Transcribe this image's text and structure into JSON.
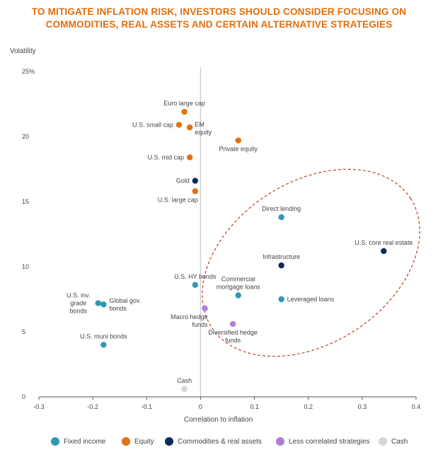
{
  "title_lines": [
    "TO MITIGATE INFLATION RISK, INVESTORS SHOULD CONSIDER FOCUSING ON",
    "COMMODITIES, REAL ASSETS AND CERTAIN ALTERNATIVE STRATEGIES"
  ],
  "colors": {
    "title": "#e46c0a",
    "fixed_income": "#2f9ab0",
    "equity": "#e2720f",
    "commodities": "#0d2b5a",
    "less_correlated": "#b07fd6",
    "cash": "#d6d6d6",
    "ellipse": "#b5452a",
    "axis": "#555555",
    "zero_line": "#cfcfcf"
  },
  "chart_data": {
    "type": "scatter",
    "title": "TO MITIGATE INFLATION RISK, INVESTORS SHOULD CONSIDER FOCUSING ON COMMODITIES, REAL ASSETS AND CERTAIN ALTERNATIVE STRATEGIES",
    "xlabel": "Correlation to inflation",
    "ylabel": "Volatility",
    "xlim": [
      -0.3,
      0.4
    ],
    "ylim": [
      0,
      25
    ],
    "x_ticks": [
      {
        "value": -0.3,
        "label": "-0.3"
      },
      {
        "value": -0.2,
        "label": "-0.2"
      },
      {
        "value": -0.1,
        "label": "-0.1"
      },
      {
        "value": 0,
        "label": "0"
      },
      {
        "value": 0.1,
        "label": "0.1"
      },
      {
        "value": 0.2,
        "label": "0.2"
      },
      {
        "value": 0.3,
        "label": "0.3"
      },
      {
        "value": 0.4,
        "label": "0.4"
      }
    ],
    "y_ticks": [
      {
        "value": 0,
        "label": "0"
      },
      {
        "value": 5,
        "label": "5"
      },
      {
        "value": 10,
        "label": "10"
      },
      {
        "value": 15,
        "label": "15"
      },
      {
        "value": 20,
        "label": "20"
      },
      {
        "value": 25,
        "label": "25%"
      }
    ],
    "legend": [
      {
        "key": "fixed_income",
        "label": "Fixed income"
      },
      {
        "key": "equity",
        "label": "Equity"
      },
      {
        "key": "commodities",
        "label": "Commodities & real assets"
      },
      {
        "key": "less_correlated",
        "label": "Less correlated strategies"
      },
      {
        "key": "cash",
        "label": "Cash"
      }
    ],
    "legend_position": "bottom",
    "highlight_ellipse": {
      "center": [
        0.205,
        10.3
      ],
      "semi_axes": [
        0.22,
        6.2
      ],
      "rotation_deg": -33,
      "style": "dashed"
    },
    "points": [
      {
        "label": [
          "Euro large cap"
        ],
        "x": -0.03,
        "y": 21.9,
        "category": "equity",
        "label_pos": "top"
      },
      {
        "label": [
          "U.S. small cap"
        ],
        "x": -0.04,
        "y": 20.9,
        "category": "equity",
        "label_pos": "left"
      },
      {
        "label": [
          "EM",
          "equity"
        ],
        "x": -0.02,
        "y": 20.7,
        "category": "equity",
        "label_pos": "right-below"
      },
      {
        "label": [
          "Private equity"
        ],
        "x": 0.07,
        "y": 19.7,
        "category": "equity",
        "label_pos": "bottom"
      },
      {
        "label": [
          "U.S. mid cap"
        ],
        "x": -0.02,
        "y": 18.4,
        "category": "equity",
        "label_pos": "left"
      },
      {
        "label": [
          "Gold"
        ],
        "x": -0.01,
        "y": 16.6,
        "category": "commodities",
        "label_pos": "left"
      },
      {
        "label": [
          "U.S. large cap"
        ],
        "x": -0.01,
        "y": 15.8,
        "category": "equity",
        "label_pos": "bottom-left"
      },
      {
        "label": [
          "Direct lending"
        ],
        "x": 0.15,
        "y": 13.8,
        "category": "fixed_income",
        "label_pos": "top"
      },
      {
        "label": [
          "U.S. core real estate"
        ],
        "x": 0.34,
        "y": 11.2,
        "category": "commodities",
        "label_pos": "top"
      },
      {
        "label": [
          "Infrastructure"
        ],
        "x": 0.15,
        "y": 10.1,
        "category": "commodities",
        "label_pos": "top"
      },
      {
        "label": [
          "U.S. HY bonds"
        ],
        "x": -0.01,
        "y": 8.6,
        "category": "fixed_income",
        "label_pos": "top"
      },
      {
        "label": [
          "Commercial",
          "mortgage loans"
        ],
        "x": 0.07,
        "y": 7.8,
        "category": "fixed_income",
        "label_pos": "top"
      },
      {
        "label": [
          "Leveraged loans"
        ],
        "x": 0.15,
        "y": 7.5,
        "category": "fixed_income",
        "label_pos": "right"
      },
      {
        "label": [
          "U.S. inv.",
          "grade",
          "bonds"
        ],
        "x": -0.19,
        "y": 7.2,
        "category": "fixed_income",
        "label_pos": "left"
      },
      {
        "label": [
          "Global gov.",
          "bonds"
        ],
        "x": -0.18,
        "y": 7.1,
        "category": "fixed_income",
        "label_pos": "right"
      },
      {
        "label": [
          "Macro hedge",
          "funds"
        ],
        "x": 0.008,
        "y": 6.8,
        "category": "less_correlated",
        "label_pos": "bottom-left"
      },
      {
        "label": [
          "Diversified hedge",
          "funds"
        ],
        "x": 0.06,
        "y": 5.6,
        "category": "less_correlated",
        "label_pos": "bottom"
      },
      {
        "label": [
          "U.S. muni bonds"
        ],
        "x": -0.18,
        "y": 4.0,
        "category": "fixed_income",
        "label_pos": "top"
      },
      {
        "label": [
          "Cash"
        ],
        "x": -0.03,
        "y": 0.6,
        "category": "cash",
        "label_pos": "top"
      }
    ]
  }
}
